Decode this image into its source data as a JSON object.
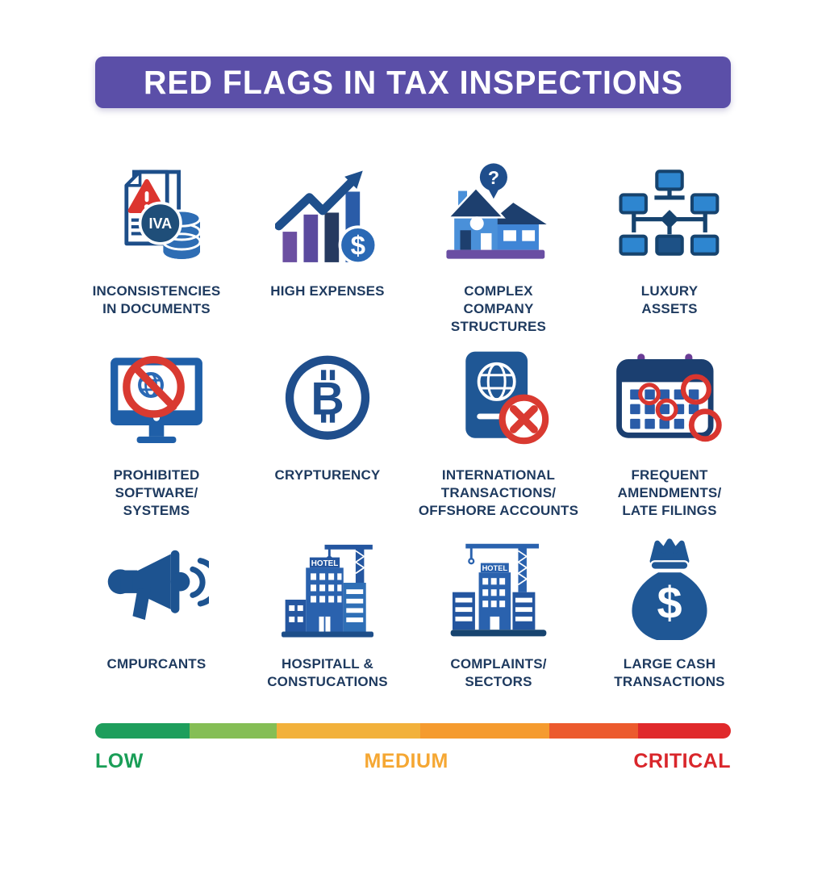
{
  "header": {
    "title": "RED FLAGS IN TAX INSPECTIONS",
    "bg_color": "#5b4fa8",
    "text_color": "#ffffff"
  },
  "grid": {
    "items": [
      {
        "id": "inconsistencies-in-documents",
        "icon": "documents-warning-icon",
        "label": "INCONSISTENCIES\nIN DOCUMENTS",
        "coin_text": "IVA"
      },
      {
        "id": "high-expenses",
        "icon": "rising-chart-dollar-icon",
        "label": "HIGH EXPENSES",
        "coin_text": "$"
      },
      {
        "id": "complex-company-structures",
        "icon": "house-question-icon",
        "label": "COMPLEX\nCOMPANY\nSTRUCTURES",
        "bubble_text": "?"
      },
      {
        "id": "luxury-assets",
        "icon": "org-chart-icon",
        "label": "LUXURY\nASSETS"
      },
      {
        "id": "prohibited-software-systems",
        "icon": "monitor-prohibited-icon",
        "label": "PROHIBITED\nSOFTWARE/\nSYSTEMS"
      },
      {
        "id": "cryptocurrency",
        "icon": "bitcoin-icon",
        "label": "CRYPTURENCY",
        "symbol": "B"
      },
      {
        "id": "international-transactions-offshore-accounts",
        "icon": "passport-cancel-icon",
        "label": "INTERNATIONAL\nTRANSACTIONS/\nOFFSHORE ACCOUNTS"
      },
      {
        "id": "frequent-amendments-late-filings",
        "icon": "calendar-marks-icon",
        "label": "FREQUENT\nAMENDMENTS/\nLATE FILINGS"
      },
      {
        "id": "complainants",
        "icon": "megaphone-icon",
        "label": "CMPURCANTS"
      },
      {
        "id": "hospitality-construction",
        "icon": "hotel-crane-icon",
        "label": "HOSPITALL &\nCONSTUCATIONS",
        "sign_text": "HOTEL"
      },
      {
        "id": "complaints-sectors",
        "icon": "buildings-crane-icon",
        "label": "COMPLAINTS/\nSECTORS",
        "sign_text": "HOTEL"
      },
      {
        "id": "large-cash-transactions",
        "icon": "money-bag-icon",
        "label": "LARGE CASH\nTRANSACTIONS",
        "symbol": "$"
      }
    ]
  },
  "severity_scale": {
    "segments": [
      {
        "name": "green",
        "color": "#1e9e5c",
        "width_pct": 14.9
      },
      {
        "name": "light-green",
        "color": "#85be55",
        "width_pct": 13.7
      },
      {
        "name": "amber",
        "color": "#f2b13b",
        "width_pct": 22.5
      },
      {
        "name": "orange",
        "color": "#f59b2f",
        "width_pct": 20.3
      },
      {
        "name": "orange-red",
        "color": "#ec5a2d",
        "width_pct": 14.0
      },
      {
        "name": "red",
        "color": "#e0292b",
        "width_pct": 14.6
      }
    ],
    "labels": [
      {
        "text": "LOW",
        "color": "#1a9e57"
      },
      {
        "text": "MEDIUM",
        "color": "#f5a733"
      },
      {
        "text": "CRITICAL",
        "color": "#d9262b"
      }
    ]
  },
  "colors": {
    "icon_navy": "#1f4e8c",
    "icon_blue": "#2a69b5",
    "icon_light_blue": "#4a90d9",
    "icon_purple": "#6a4ea3",
    "alert_red": "#d93a31",
    "label_text": "#1e3a5f"
  }
}
